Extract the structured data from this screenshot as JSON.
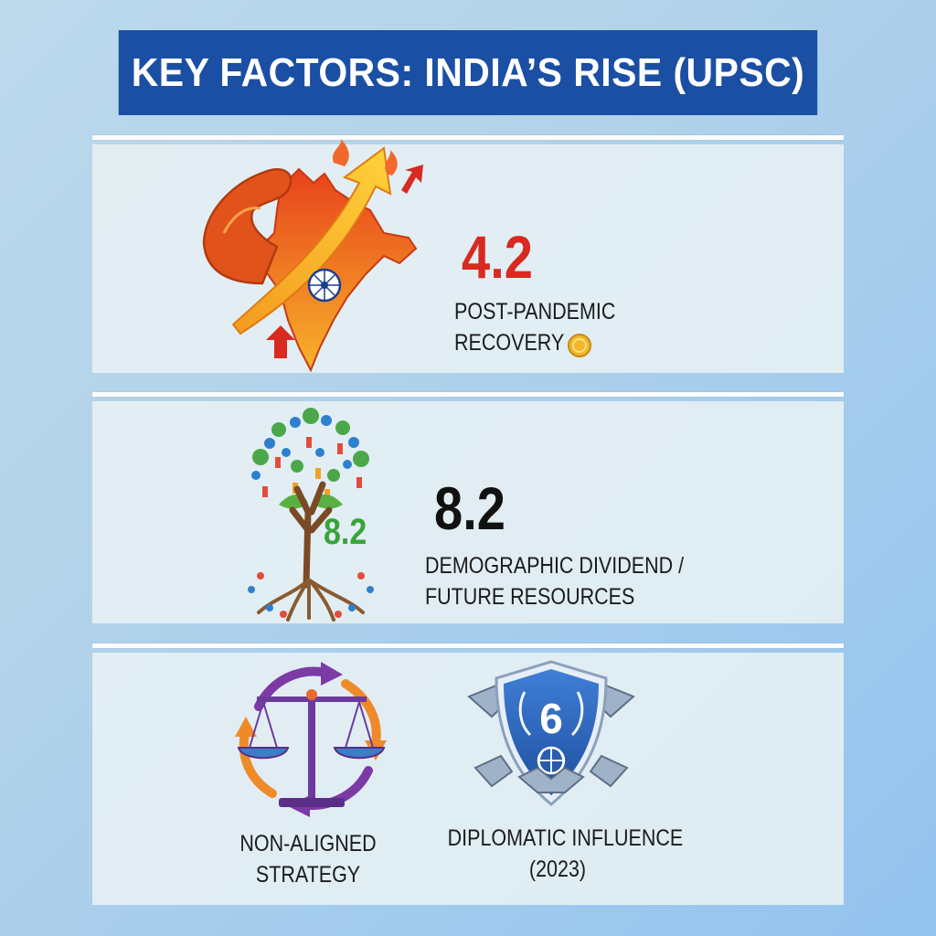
{
  "header": {
    "title": "KEY FACTORS: INDIA’S RISE (UPSC)"
  },
  "factors": [
    {
      "value": "4.2",
      "value_color": "#d82a21",
      "label_line1": "POST-PANDEMIC",
      "label_line2": "RECOVERY",
      "icon": "flexing-india-map-with-growth-arrow-icon",
      "badge_icon": "gold-coin-icon"
    },
    {
      "value": "8.2",
      "value_color": "#111111",
      "tree_value": "8.2",
      "tree_value_color": "#3aa33a",
      "label_line1": "DEMOGRAPHIC DIVIDEND /",
      "label_line2": "FUTURE RESOURCES",
      "icon": "people-tree-icon"
    }
  ],
  "bottom": {
    "strategy_line1": "NON-ALIGNED",
    "strategy_line2": "STRATEGY",
    "strategy_icon": "balance-scale-cycle-icon",
    "influence_number": "6",
    "influence_line1": "DIPLOMATIC INFLUENCE",
    "influence_line2": "(2023)",
    "influence_icon": "shield-handshake-icon"
  },
  "colors": {
    "title_bg": "#1a4fa3",
    "accent_red": "#d82a21",
    "accent_green": "#3aa33a",
    "accent_purple": "#6c3a9c",
    "accent_orange": "#ef8a2a",
    "accent_blue": "#2d63b8"
  }
}
